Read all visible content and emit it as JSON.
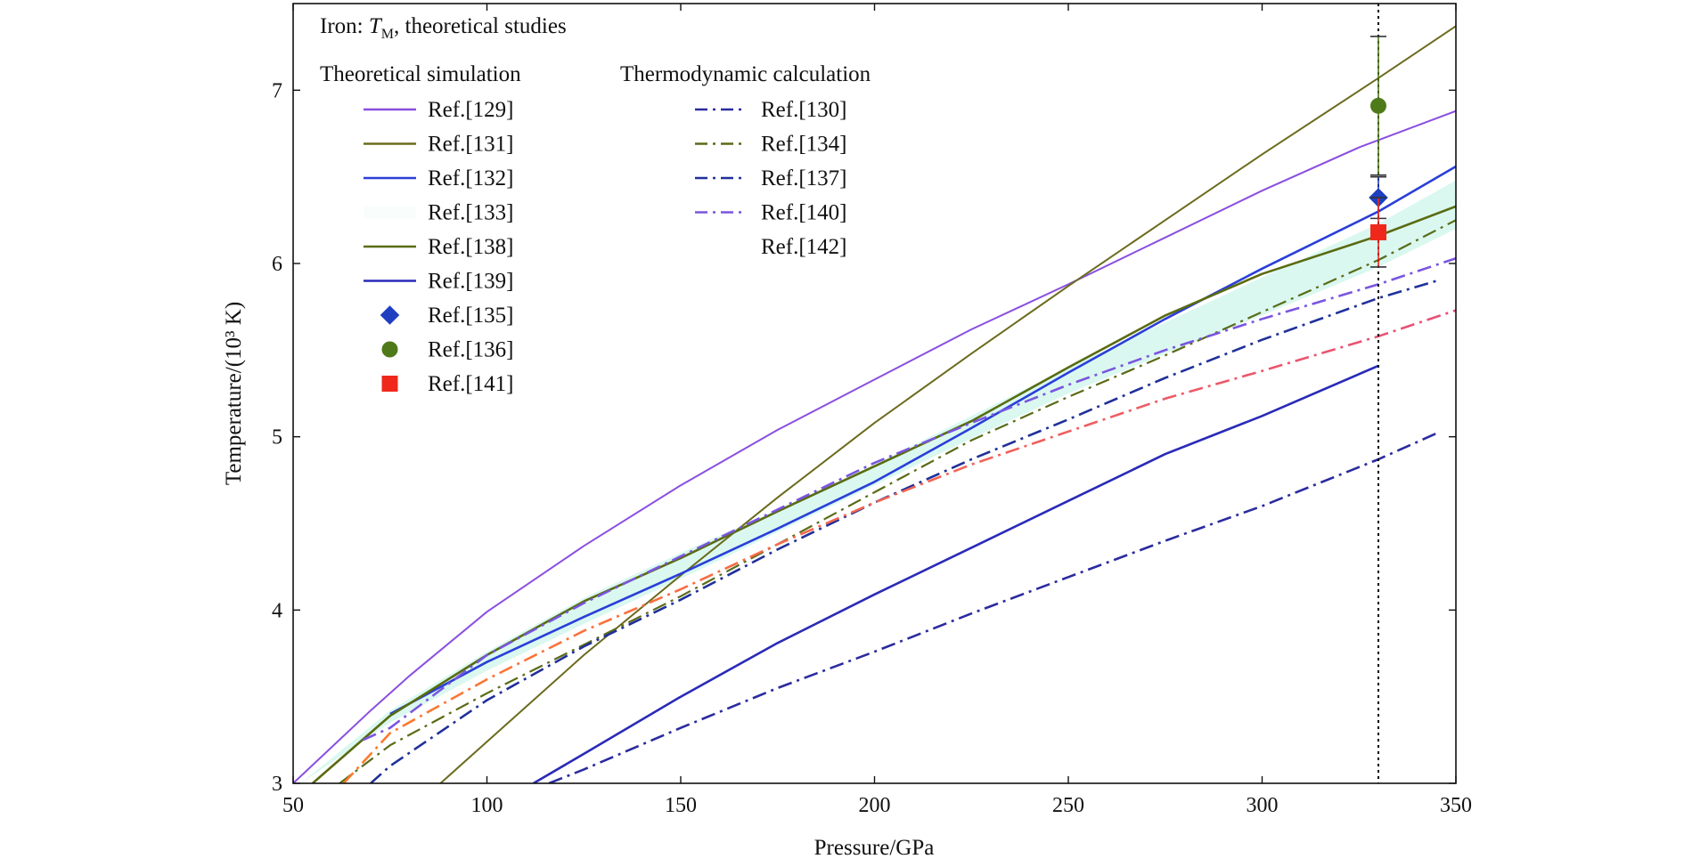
{
  "chart_data": {
    "type": "line",
    "title": {
      "prefix": "Iron: ",
      "symbol": "T",
      "subscript": "M",
      "suffix": ", theoretical studies"
    },
    "xlabel": "Pressure/GPa",
    "ylabel": "Temperature/(10³ K)",
    "xlim": [
      50,
      350
    ],
    "ylim": [
      3,
      7.5
    ],
    "x_ticks": [
      50,
      100,
      150,
      200,
      250,
      300,
      350
    ],
    "y_ticks": [
      3,
      4,
      5,
      6,
      7
    ],
    "grid": false,
    "legend_placement": "top-left",
    "legend_groups": [
      {
        "heading": "Theoretical simulation",
        "entries": [
          {
            "label": "Ref.[129]",
            "marker": "line",
            "style": "solid",
            "color": "#8a4fe0"
          },
          {
            "label": "Ref.[131]",
            "marker": "line",
            "style": "solid",
            "color": "#6b6b1e"
          },
          {
            "label": "Ref.[132]",
            "marker": "line",
            "style": "solid",
            "color": "#2a3fd8"
          },
          {
            "label": "Ref.[133]",
            "marker": "band",
            "style": "fill",
            "color": "#d6f7ee"
          },
          {
            "label": "Ref.[138]",
            "marker": "line",
            "style": "solid",
            "color": "#5a6b10"
          },
          {
            "label": "Ref.[139]",
            "marker": "line",
            "style": "solid",
            "color": "#2a2ab8"
          },
          {
            "label": "Ref.[135]",
            "marker": "diamond",
            "style": "point",
            "color": "#1f3fc0"
          },
          {
            "label": "Ref.[136]",
            "marker": "circle",
            "style": "point",
            "color": "#4f7a1a"
          },
          {
            "label": "Ref.[141]",
            "marker": "square",
            "style": "point",
            "color": "#f0281c"
          }
        ]
      },
      {
        "heading": "Thermodynamic calculation",
        "entries": [
          {
            "label": "Ref.[130]",
            "marker": "line",
            "style": "dashdot",
            "color": "#2b2ba0"
          },
          {
            "label": "Ref.[134]",
            "marker": "line",
            "style": "dashdot",
            "color": "#5a6b18"
          },
          {
            "label": "Ref.[137]",
            "marker": "line",
            "style": "dashdot",
            "color": "#20309a"
          },
          {
            "label": "Ref.[140]",
            "marker": "line",
            "style": "dashdot",
            "color": "#7a55e0"
          },
          {
            "label": "Ref.[142]",
            "marker": "line",
            "style": "dashdot-gradient",
            "color": "#ff7a2a",
            "color2": "#e6507a"
          }
        ]
      }
    ],
    "band": {
      "name": "Ref.[133]",
      "color": "#d6f7ee",
      "upper": {
        "x": [
          52,
          75,
          100,
          125,
          150,
          175,
          200,
          225,
          250,
          275,
          300,
          330,
          350
        ],
        "y": [
          3.0,
          3.42,
          3.76,
          4.07,
          4.33,
          4.58,
          4.84,
          5.12,
          5.4,
          5.66,
          5.92,
          6.23,
          6.48
        ]
      },
      "lower": {
        "x": [
          52,
          75,
          100,
          125,
          150,
          175,
          200,
          225,
          250,
          275,
          300,
          330,
          350
        ],
        "y": [
          3.0,
          3.35,
          3.65,
          3.92,
          4.18,
          4.45,
          4.72,
          4.99,
          5.25,
          5.48,
          5.7,
          5.98,
          6.2
        ]
      }
    },
    "series": [
      {
        "name": "Ref.[129]",
        "style": "solid",
        "width": 2,
        "color": "#8a4fe0",
        "x": [
          50,
          60,
          70,
          80,
          100,
          125,
          150,
          175,
          200,
          225,
          250,
          275,
          300,
          325,
          350
        ],
        "y": [
          3.0,
          3.21,
          3.42,
          3.62,
          3.99,
          4.37,
          4.72,
          5.04,
          5.33,
          5.62,
          5.88,
          6.15,
          6.42,
          6.67,
          6.88
        ]
      },
      {
        "name": "Ref.[131]",
        "style": "solid",
        "width": 2,
        "color": "#6b6b1e",
        "x": [
          88,
          100,
          125,
          150,
          175,
          200,
          225,
          250,
          275,
          300,
          330,
          350
        ],
        "y": [
          3.0,
          3.24,
          3.74,
          4.2,
          4.65,
          5.08,
          5.48,
          5.87,
          6.25,
          6.63,
          7.07,
          7.37
        ]
      },
      {
        "name": "Ref.[132]",
        "style": "solid",
        "width": 2.6,
        "color": "#2a3fd8",
        "x": [
          75,
          100,
          125,
          150,
          175,
          200,
          225,
          250,
          275,
          300,
          330,
          350
        ],
        "y": [
          3.4,
          3.7,
          3.96,
          4.21,
          4.47,
          4.74,
          5.05,
          5.37,
          5.68,
          5.97,
          6.3,
          6.56
        ]
      },
      {
        "name": "Ref.[138]",
        "style": "solid",
        "width": 2.6,
        "color": "#5a6b10",
        "x": [
          55,
          75,
          100,
          125,
          150,
          175,
          200,
          225,
          250,
          275,
          300,
          330,
          350
        ],
        "y": [
          3.0,
          3.39,
          3.74,
          4.05,
          4.3,
          4.57,
          4.83,
          5.09,
          5.4,
          5.7,
          5.94,
          6.16,
          6.33
        ]
      },
      {
        "name": "Ref.[139]",
        "style": "solid",
        "width": 2.6,
        "color": "#2a2ab8",
        "x": [
          112,
          125,
          150,
          175,
          200,
          225,
          250,
          275,
          300,
          330
        ],
        "y": [
          3.0,
          3.17,
          3.5,
          3.81,
          4.09,
          4.36,
          4.63,
          4.9,
          5.12,
          5.41
        ]
      },
      {
        "name": "Ref.[130]",
        "style": "dashdot",
        "width": 2.6,
        "color": "#2b2ba0",
        "x": [
          116,
          125,
          150,
          175,
          200,
          225,
          250,
          275,
          300,
          330,
          345
        ],
        "y": [
          3.0,
          3.08,
          3.32,
          3.55,
          3.76,
          3.98,
          4.19,
          4.4,
          4.6,
          4.87,
          5.02
        ]
      },
      {
        "name": "Ref.[134]",
        "style": "dashdot",
        "width": 2.2,
        "color": "#5a6b18",
        "x": [
          62,
          75,
          100,
          125,
          150,
          175,
          200,
          225,
          250,
          275,
          300,
          330,
          350
        ],
        "y": [
          3.0,
          3.22,
          3.52,
          3.8,
          4.08,
          4.38,
          4.68,
          4.98,
          5.23,
          5.47,
          5.72,
          6.02,
          6.25
        ]
      },
      {
        "name": "Ref.[137]",
        "style": "dashdot",
        "width": 2.6,
        "color": "#20309a",
        "x": [
          70,
          75,
          100,
          125,
          150,
          175,
          200,
          225,
          250,
          275,
          300,
          330,
          345
        ],
        "y": [
          3.0,
          3.1,
          3.48,
          3.79,
          4.06,
          4.35,
          4.62,
          4.87,
          5.1,
          5.34,
          5.56,
          5.8,
          5.9
        ]
      },
      {
        "name": "Ref.[140]",
        "style": "dashdot",
        "width": 2.6,
        "color": "#7a55e0",
        "x": [
          68,
          75,
          100,
          125,
          150,
          175,
          200,
          225,
          250,
          275,
          300,
          330,
          350
        ],
        "y": [
          3.25,
          3.32,
          3.74,
          4.04,
          4.31,
          4.58,
          4.85,
          5.08,
          5.3,
          5.5,
          5.68,
          5.88,
          6.03
        ]
      },
      {
        "name": "Ref.[142]",
        "style": "dashdot-gradient",
        "width": 2.6,
        "color": "#ff7a2a",
        "color2": "#e6507a",
        "x": [
          63,
          75,
          100,
          125,
          150,
          175,
          200,
          225,
          250,
          275,
          300,
          330,
          350
        ],
        "y": [
          3.0,
          3.29,
          3.6,
          3.88,
          4.12,
          4.38,
          4.62,
          4.84,
          5.03,
          5.22,
          5.38,
          5.58,
          5.73
        ]
      }
    ],
    "points": [
      {
        "name": "Ref.[136]",
        "marker": "circle",
        "color": "#4f7a1a",
        "x": 330,
        "y": 6.91,
        "err": 0.4
      },
      {
        "name": "Ref.[135]",
        "marker": "diamond",
        "color": "#1f3fc0",
        "x": 330,
        "y": 6.38,
        "err": 0.12
      },
      {
        "name": "Ref.[141]",
        "marker": "square",
        "color": "#f0281c",
        "x": 330,
        "y": 6.18,
        "err": 0.2
      }
    ],
    "reference_line": {
      "x": 330,
      "style": "dotted",
      "color": "#000000"
    }
  }
}
